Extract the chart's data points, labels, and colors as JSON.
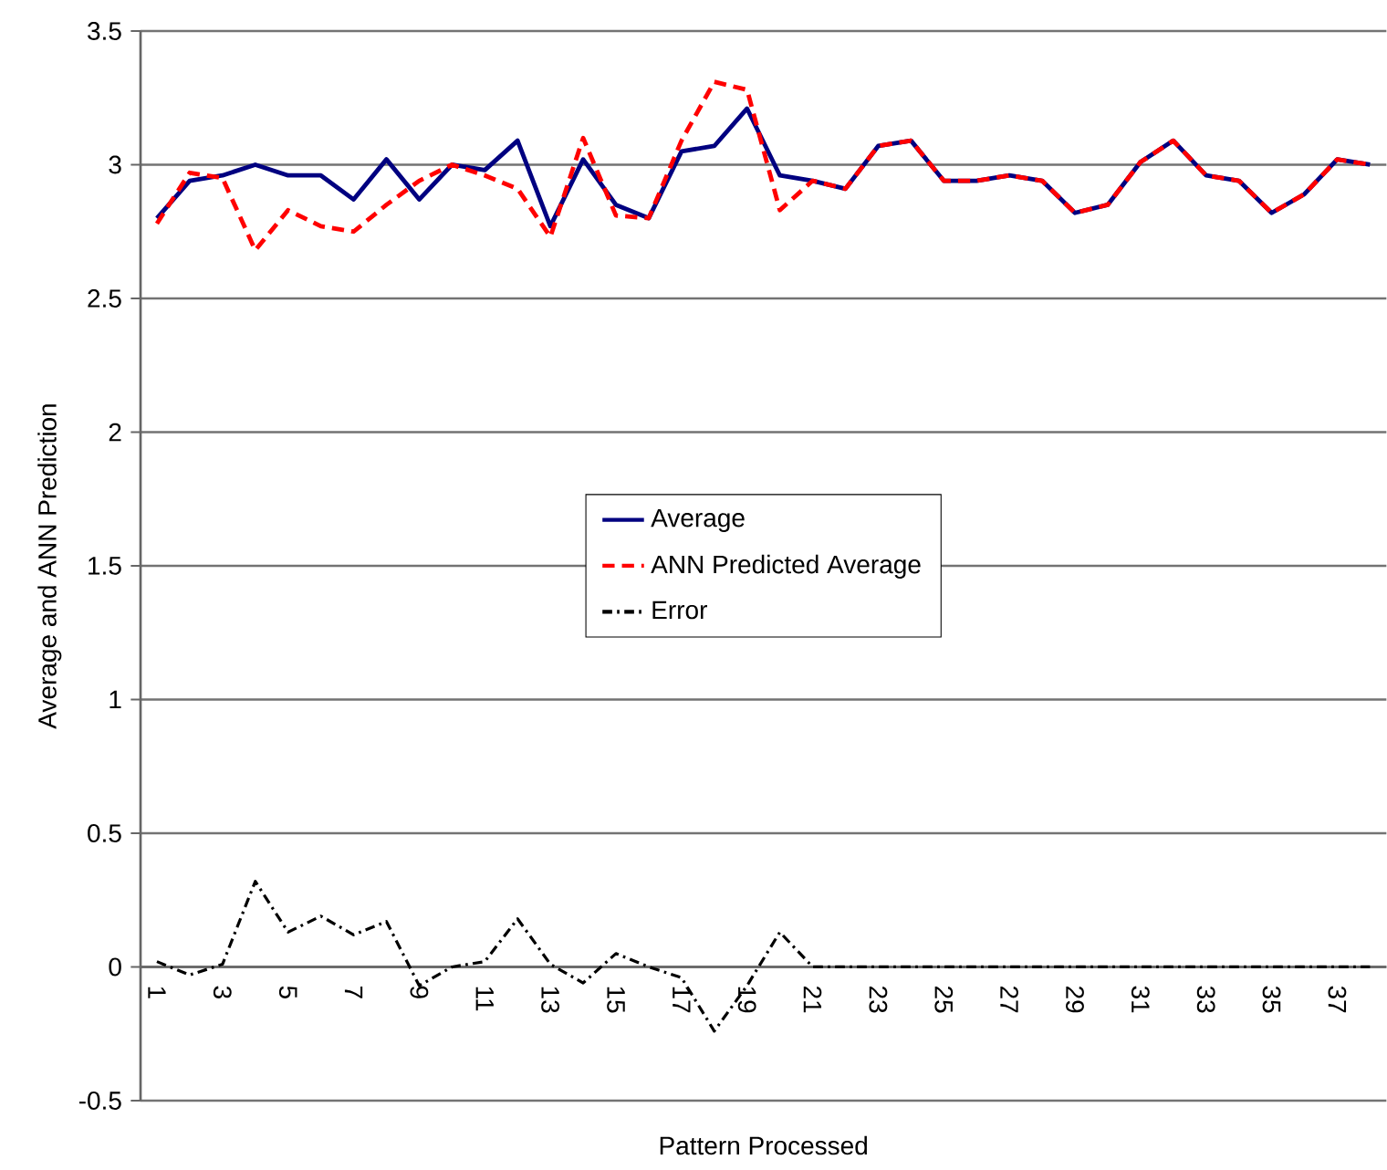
{
  "chart_data": {
    "type": "line",
    "xlabel": "Pattern Processed",
    "ylabel": "Average and ANN Prediction",
    "categories": [
      "1",
      null,
      "3",
      null,
      "5",
      null,
      "7",
      null,
      "9",
      null,
      "11",
      null,
      "13",
      null,
      "15",
      null,
      "17",
      null,
      "19",
      null,
      "21",
      null,
      "23",
      null,
      "25",
      null,
      "27",
      null,
      "29",
      null,
      "31",
      null,
      "33",
      null,
      "35",
      null,
      "37",
      null
    ],
    "series": [
      {
        "name": "Average",
        "color": "#000080",
        "line_style": "solid",
        "values": [
          2.8,
          2.94,
          2.96,
          3.0,
          2.96,
          2.96,
          2.87,
          3.02,
          2.87,
          3.0,
          2.98,
          3.09,
          2.77,
          3.02,
          2.85,
          2.8,
          3.05,
          3.07,
          3.21,
          2.96,
          2.94,
          2.91,
          3.07,
          3.09,
          2.94,
          2.94,
          2.96,
          2.94,
          2.82,
          2.85,
          3.01,
          3.09,
          2.96,
          2.94,
          2.82,
          2.89,
          3.02,
          3.0
        ]
      },
      {
        "name": "ANN Predicted Average",
        "color": "#ff0000",
        "line_style": "dashed",
        "values": [
          2.78,
          2.97,
          2.95,
          2.68,
          2.83,
          2.77,
          2.75,
          2.85,
          2.94,
          3.0,
          2.96,
          2.91,
          2.73,
          3.1,
          2.81,
          2.8,
          3.09,
          3.31,
          3.28,
          2.83,
          2.94,
          2.91,
          3.07,
          3.09,
          2.94,
          2.94,
          2.96,
          2.94,
          2.82,
          2.85,
          3.01,
          3.09,
          2.96,
          2.94,
          2.82,
          2.89,
          3.02,
          3.0
        ]
      },
      {
        "name": "Error",
        "color": "#000000",
        "line_style": "dashdot",
        "values": [
          0.02,
          -0.03,
          0.01,
          0.32,
          0.13,
          0.19,
          0.12,
          0.17,
          -0.07,
          0.0,
          0.02,
          0.18,
          0.01,
          -0.06,
          0.05,
          0.0,
          -0.04,
          -0.24,
          -0.07,
          0.13,
          0.0,
          0.0,
          0.0,
          0.0,
          0.0,
          0.0,
          0.0,
          0.0,
          0.0,
          0.0,
          0.0,
          0.0,
          0.0,
          0.0,
          0.0,
          0.0,
          0.0,
          0.0
        ]
      }
    ],
    "ylim": [
      -0.5,
      3.5
    ],
    "yticks": [
      -0.5,
      0,
      0.5,
      1,
      1.5,
      2,
      2.5,
      3,
      3.5
    ],
    "grid": "y",
    "legend": "center",
    "marker": "none"
  }
}
